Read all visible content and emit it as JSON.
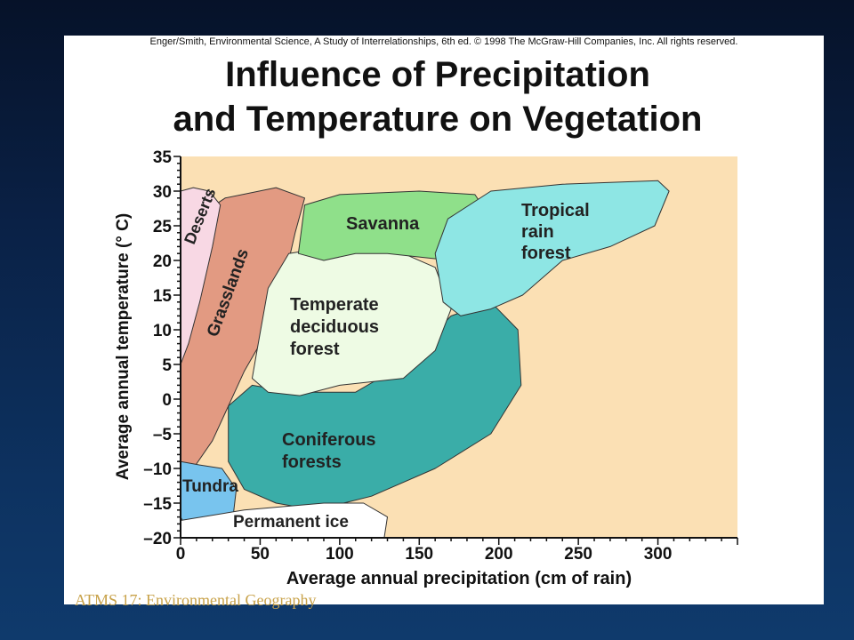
{
  "slide": {
    "footer": "ATMS 17: Environmental Geography"
  },
  "figure": {
    "credit": "Enger/Smith, Environmental Science, A Study of Interrelationships, 6th ed. © 1998 The McGraw-Hill Companies, Inc. All rights reserved.",
    "title_line1": "Influence of Precipitation",
    "title_line2": "and Temperature on Vegetation"
  },
  "colors": {
    "plot_background": "#fbe0b4",
    "deserts": "#f8d8e4",
    "grasslands": "#e29a82",
    "savanna": "#8fe08a",
    "tropical_rain_forest": "#8ee6e4",
    "temperate_deciduous_forest": "#eefbe4",
    "coniferous_forests": "#3aada8",
    "tundra": "#78c4ee",
    "permanent_ice": "#ffffff",
    "overlap": "#9aa39a"
  },
  "chart_data": {
    "type": "area",
    "xlabel": "Average annual precipitation (cm of rain)",
    "ylabel": "Average annual temperature (° C)",
    "xlim": [
      0,
      350
    ],
    "ylim": [
      -20,
      35
    ],
    "xticks": [
      0,
      50,
      100,
      150,
      200,
      250,
      300
    ],
    "yticks": [
      35,
      30,
      25,
      20,
      15,
      10,
      5,
      0,
      -5,
      -10,
      -15,
      -20
    ],
    "ytick_labels": [
      "35",
      "30",
      "25",
      "20",
      "15",
      "10",
      "5",
      "0",
      "–5",
      "–10",
      "–15",
      "–20"
    ],
    "grid": false,
    "regions": [
      {
        "key": "grasslands",
        "name": "Grasslands",
        "label": "Grasslands",
        "polygon": [
          [
            0,
            6
          ],
          [
            3,
            14
          ],
          [
            8,
            23
          ],
          [
            15,
            27
          ],
          [
            28,
            29
          ],
          [
            60,
            30.5
          ],
          [
            78,
            29
          ],
          [
            72,
            24
          ],
          [
            66,
            18
          ],
          [
            55,
            10
          ],
          [
            40,
            4
          ],
          [
            30,
            -1
          ],
          [
            20,
            -6
          ],
          [
            8,
            -10
          ],
          [
            0,
            -9
          ]
        ]
      },
      {
        "key": "deserts",
        "name": "Deserts",
        "label": "Deserts",
        "polygon": [
          [
            0,
            5
          ],
          [
            0,
            30
          ],
          [
            8,
            30.5
          ],
          [
            18,
            30
          ],
          [
            25,
            28
          ],
          [
            20,
            22
          ],
          [
            12,
            14
          ],
          [
            5,
            8
          ]
        ]
      },
      {
        "key": "savanna",
        "name": "Savanna",
        "label": "Savanna",
        "polygon": [
          [
            74,
            21
          ],
          [
            78,
            28
          ],
          [
            100,
            29.5
          ],
          [
            150,
            30
          ],
          [
            185,
            29.5
          ],
          [
            195,
            26
          ],
          [
            185,
            21
          ],
          [
            170,
            20
          ],
          [
            130,
            21
          ],
          [
            110,
            21
          ],
          [
            90,
            20
          ]
        ]
      },
      {
        "key": "tropical",
        "name": "Tropical rain forest",
        "label_lines": [
          "Tropical",
          "rain",
          "forest"
        ],
        "polygon": [
          [
            160,
            21
          ],
          [
            168,
            26
          ],
          [
            195,
            30
          ],
          [
            240,
            31
          ],
          [
            300,
            31.5
          ],
          [
            307,
            30
          ],
          [
            298,
            25
          ],
          [
            270,
            22
          ],
          [
            240,
            20
          ],
          [
            215,
            15
          ],
          [
            195,
            13
          ],
          [
            176,
            12
          ],
          [
            165,
            14
          ]
        ]
      },
      {
        "key": "temperate",
        "name": "Temperate deciduous forest",
        "label_lines": [
          "Temperate",
          "deciduous",
          "forest"
        ],
        "polygon": [
          [
            48,
            7
          ],
          [
            55,
            16
          ],
          [
            68,
            21
          ],
          [
            95,
            22
          ],
          [
            135,
            21.5
          ],
          [
            160,
            19
          ],
          [
            170,
            13
          ],
          [
            160,
            7
          ],
          [
            140,
            3
          ],
          [
            100,
            2
          ],
          [
            75,
            0.5
          ],
          [
            55,
            1
          ],
          [
            45,
            3
          ]
        ]
      },
      {
        "key": "coniferous",
        "name": "Coniferous forests",
        "label_lines": [
          "Coniferous",
          "forests"
        ],
        "polygon": [
          [
            30,
            -1
          ],
          [
            45,
            2
          ],
          [
            70,
            1
          ],
          [
            110,
            1
          ],
          [
            140,
            5
          ],
          [
            170,
            12
          ],
          [
            195,
            14
          ],
          [
            212,
            10
          ],
          [
            214,
            2
          ],
          [
            195,
            -5
          ],
          [
            160,
            -10
          ],
          [
            120,
            -14
          ],
          [
            85,
            -16
          ],
          [
            60,
            -15
          ],
          [
            40,
            -13
          ],
          [
            30,
            -9
          ]
        ]
      },
      {
        "key": "tundra",
        "name": "Tundra",
        "label": "Tundra",
        "polygon": [
          [
            0,
            -9
          ],
          [
            12,
            -9.5
          ],
          [
            26,
            -10
          ],
          [
            35,
            -13
          ],
          [
            33,
            -17
          ],
          [
            20,
            -19.5
          ],
          [
            5,
            -19
          ],
          [
            0,
            -17
          ]
        ]
      },
      {
        "key": "ice",
        "name": "Permanent ice",
        "label": "Permanent ice",
        "polygon": [
          [
            0,
            -17.5
          ],
          [
            40,
            -16
          ],
          [
            90,
            -15
          ],
          [
            115,
            -15
          ],
          [
            130,
            -17
          ],
          [
            128,
            -20
          ],
          [
            0,
            -20
          ]
        ]
      }
    ]
  }
}
